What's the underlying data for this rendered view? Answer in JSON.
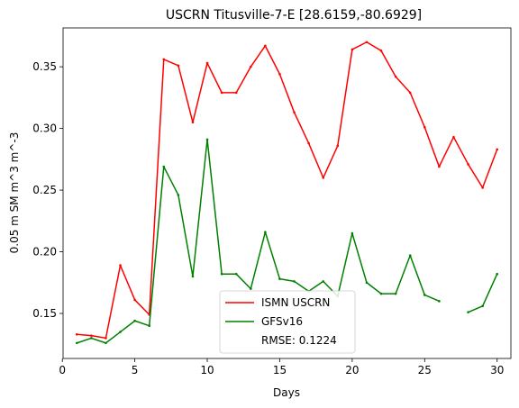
{
  "chart_data": {
    "type": "line",
    "title": "USCRN Titusville-7-E [28.6159,-80.6929]",
    "xlabel": "Days",
    "ylabel": "0.05 m SM m^3 m^-3",
    "xlim": [
      0.05,
      30.95
    ],
    "ylim": [
      0.1135,
      0.3815
    ],
    "xticks": [
      0,
      5,
      10,
      15,
      20,
      25,
      30
    ],
    "xtick_labels": [
      "0",
      "5",
      "10",
      "15",
      "20",
      "25",
      "30"
    ],
    "yticks": [
      0.15,
      0.2,
      0.25,
      0.3,
      0.35
    ],
    "ytick_labels": [
      "0.15",
      "0.20",
      "0.25",
      "0.30",
      "0.35"
    ],
    "grid": false,
    "legend_position": "lower-center",
    "series": [
      {
        "name": "ISMN USCRN",
        "color": "#ff0000",
        "x": [
          1,
          2,
          3,
          4,
          5,
          6,
          7,
          8,
          9,
          10,
          11,
          12,
          13,
          14,
          15,
          16,
          17,
          18,
          19,
          20,
          21,
          22,
          23,
          24,
          25,
          26,
          27,
          28,
          29,
          30
        ],
        "values": [
          0.133,
          0.132,
          0.13,
          0.189,
          0.161,
          0.149,
          0.356,
          0.351,
          0.305,
          0.353,
          0.329,
          0.329,
          0.35,
          0.367,
          0.344,
          0.313,
          0.288,
          0.26,
          0.286,
          0.364,
          0.37,
          0.363,
          0.342,
          0.329,
          0.301,
          0.269,
          0.293,
          0.271,
          0.252,
          0.283
        ]
      },
      {
        "name": "GFSv16",
        "color": "#008000",
        "x": [
          1,
          2,
          3,
          4,
          5,
          6,
          7,
          8,
          9,
          10,
          11,
          12,
          13,
          14,
          15,
          16,
          17,
          18,
          19,
          20,
          21,
          22,
          23,
          24,
          25,
          26,
          27,
          28,
          29,
          30
        ],
        "values": [
          0.126,
          0.13,
          0.126,
          0.135,
          0.144,
          0.14,
          0.269,
          0.246,
          0.18,
          0.291,
          0.182,
          0.182,
          0.17,
          0.216,
          0.178,
          0.176,
          0.168,
          0.176,
          0.164,
          0.215,
          0.175,
          0.166,
          0.166,
          0.197,
          0.165,
          0.16,
          null,
          0.151,
          0.156,
          0.182
        ]
      }
    ],
    "legend_extra": "RMSE: 0.1224"
  }
}
